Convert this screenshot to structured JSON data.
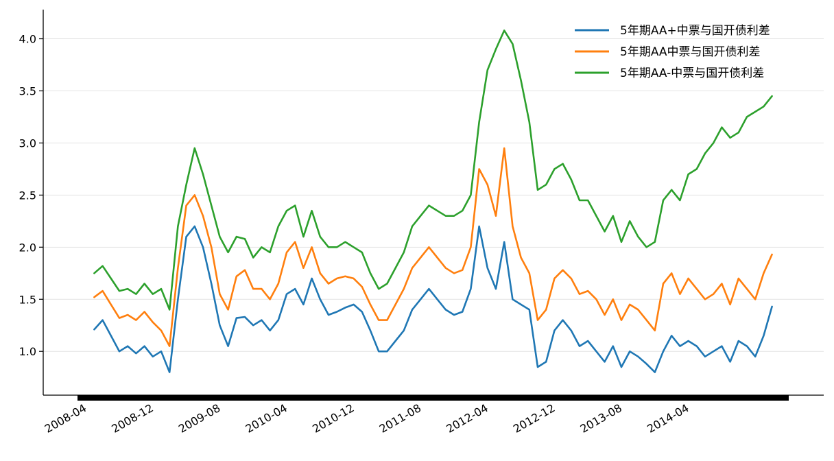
{
  "chart_data": {
    "type": "line",
    "title": "",
    "xlabel": "",
    "ylabel": "",
    "x_tick_labels": [
      "2008-04",
      "2008-12",
      "2009-08",
      "2010-04",
      "2010-12",
      "2011-08",
      "2012-04",
      "2012-12",
      "2013-08",
      "2014-04"
    ],
    "y_tick_labels": [
      "1.0",
      "1.5",
      "2.0",
      "2.5",
      "3.0",
      "3.5",
      "4.0"
    ],
    "ylim": [
      0.58,
      4.28
    ],
    "xlim": [
      "2008-03",
      "2015-04"
    ],
    "grid": "horizontal",
    "legend_position": "top-right",
    "x": [
      "2008-05",
      "2008-06",
      "2008-07",
      "2008-08",
      "2008-09",
      "2008-10",
      "2008-11",
      "2008-12",
      "2009-01",
      "2009-02",
      "2009-03",
      "2009-04",
      "2009-05",
      "2009-06",
      "2009-07",
      "2009-08",
      "2009-09",
      "2009-10",
      "2009-11",
      "2009-12",
      "2010-01",
      "2010-02",
      "2010-03",
      "2010-04",
      "2010-05",
      "2010-06",
      "2010-07",
      "2010-08",
      "2010-09",
      "2010-10",
      "2010-11",
      "2010-12",
      "2011-01",
      "2011-02",
      "2011-03",
      "2011-04",
      "2011-05",
      "2011-06",
      "2011-07",
      "2011-08",
      "2011-09",
      "2011-10",
      "2011-11",
      "2011-12",
      "2012-01",
      "2012-02",
      "2012-03",
      "2012-04",
      "2012-05",
      "2012-06",
      "2012-07",
      "2012-08",
      "2012-09",
      "2012-10",
      "2012-11",
      "2012-12",
      "2013-01",
      "2013-02",
      "2013-03",
      "2013-04",
      "2013-05",
      "2013-06",
      "2013-07",
      "2013-08",
      "2013-09",
      "2013-10",
      "2013-11",
      "2013-12",
      "2014-01",
      "2014-02",
      "2014-03",
      "2014-04",
      "2014-05",
      "2014-06",
      "2014-07",
      "2014-08",
      "2014-09",
      "2014-10",
      "2014-11",
      "2014-12",
      "2015-01",
      "2015-02"
    ],
    "series": [
      {
        "name": "5年期AA+中票与国开债利差",
        "color": "#1f77b4",
        "values": [
          1.21,
          1.3,
          1.15,
          1.0,
          1.05,
          0.98,
          1.05,
          0.95,
          1.0,
          0.8,
          1.5,
          2.1,
          2.2,
          2.0,
          1.65,
          1.25,
          1.05,
          1.32,
          1.33,
          1.25,
          1.3,
          1.2,
          1.3,
          1.55,
          1.6,
          1.45,
          1.7,
          1.5,
          1.35,
          1.38,
          1.42,
          1.45,
          1.38,
          1.2,
          1.0,
          1.0,
          1.1,
          1.2,
          1.4,
          1.5,
          1.6,
          1.5,
          1.4,
          1.35,
          1.38,
          1.6,
          2.2,
          1.8,
          1.6,
          2.05,
          1.5,
          1.45,
          1.4,
          0.85,
          0.9,
          1.2,
          1.3,
          1.2,
          1.05,
          1.1,
          1.0,
          0.9,
          1.05,
          0.85,
          1.0,
          0.95,
          0.88,
          0.8,
          1.0,
          1.15,
          1.05,
          1.1,
          1.05,
          0.95,
          1.0,
          1.05,
          0.9,
          1.1,
          1.05,
          0.95,
          1.15,
          1.43
        ]
      },
      {
        "name": "5年期AA中票与国开债利差",
        "color": "#ff7f0e",
        "values": [
          1.52,
          1.58,
          1.45,
          1.32,
          1.35,
          1.3,
          1.38,
          1.28,
          1.2,
          1.05,
          1.8,
          2.4,
          2.5,
          2.3,
          2.0,
          1.55,
          1.4,
          1.72,
          1.78,
          1.6,
          1.6,
          1.5,
          1.65,
          1.95,
          2.05,
          1.8,
          2.0,
          1.75,
          1.65,
          1.7,
          1.72,
          1.7,
          1.62,
          1.45,
          1.3,
          1.3,
          1.45,
          1.6,
          1.8,
          1.9,
          2.0,
          1.9,
          1.8,
          1.75,
          1.78,
          2.0,
          2.75,
          2.6,
          2.3,
          2.95,
          2.2,
          1.9,
          1.75,
          1.3,
          1.4,
          1.7,
          1.78,
          1.7,
          1.55,
          1.58,
          1.5,
          1.35,
          1.5,
          1.3,
          1.45,
          1.4,
          1.3,
          1.2,
          1.65,
          1.75,
          1.55,
          1.7,
          1.6,
          1.5,
          1.55,
          1.65,
          1.45,
          1.7,
          1.6,
          1.5,
          1.75,
          1.93
        ]
      },
      {
        "name": "5年期AA-中票与国开债利差",
        "color": "#2ca02c",
        "values": [
          1.75,
          1.82,
          1.7,
          1.58,
          1.6,
          1.55,
          1.65,
          1.55,
          1.6,
          1.4,
          2.2,
          2.6,
          2.95,
          2.7,
          2.4,
          2.1,
          1.95,
          2.1,
          2.08,
          1.9,
          2.0,
          1.95,
          2.2,
          2.35,
          2.4,
          2.1,
          2.35,
          2.1,
          2.0,
          2.0,
          2.05,
          2.0,
          1.95,
          1.75,
          1.6,
          1.65,
          1.8,
          1.95,
          2.2,
          2.3,
          2.4,
          2.35,
          2.3,
          2.3,
          2.35,
          2.5,
          3.2,
          3.7,
          3.9,
          4.08,
          3.95,
          3.6,
          3.2,
          2.55,
          2.6,
          2.75,
          2.8,
          2.65,
          2.45,
          2.45,
          2.3,
          2.15,
          2.3,
          2.05,
          2.25,
          2.1,
          2.0,
          2.05,
          2.45,
          2.55,
          2.45,
          2.7,
          2.75,
          2.9,
          3.0,
          3.15,
          3.05,
          3.1,
          3.25,
          3.3,
          3.35,
          3.45
        ]
      }
    ]
  }
}
